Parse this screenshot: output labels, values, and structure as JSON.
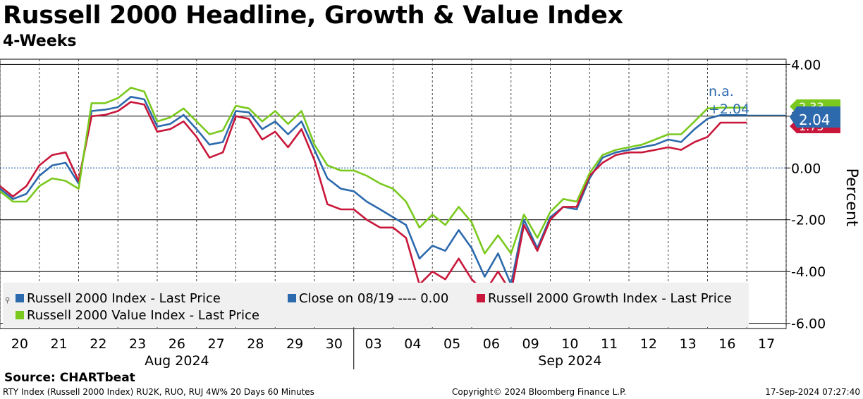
{
  "header": {
    "title": "Russell 2000 Headline, Growth & Value Index",
    "subtitle": "4-Weeks"
  },
  "footer": {
    "source": "Source:  CHARTbeat",
    "left_note": "RTY Index (Russell 2000 Index) RU2K, RUO, RUJ 4W% 20 Days 60 Minutes",
    "copyright": "Copyright© 2024 Bloomberg Finance L.P.",
    "timestamp": "17-Sep-2024 07:27:40"
  },
  "chart_data": {
    "type": "line",
    "title": "Russell 2000 Headline, Growth & Value Index",
    "subtitle": "4-Weeks",
    "ylabel": "Percent",
    "ylim": [
      -6.2,
      4.2
    ],
    "y_ticks": [
      4,
      2,
      0,
      -2,
      -4,
      -6
    ],
    "y_tick_labels": [
      "4.00",
      "2.00",
      "0.00",
      "-2.00",
      "-4.00",
      "-6.00"
    ],
    "x_tick_labels": [
      "20",
      "21",
      "22",
      "23",
      "26",
      "27",
      "28",
      "29",
      "30",
      "03",
      "04",
      "05",
      "06",
      "09",
      "10",
      "11",
      "12",
      "13",
      "16",
      "17"
    ],
    "month_labels": [
      {
        "label": "Aug 2024",
        "from": 0,
        "to": 9
      },
      {
        "label": "Sep 2024",
        "from": 9,
        "to": 20
      }
    ],
    "x_range": [
      0,
      20
    ],
    "zero_line": {
      "value": 0.0,
      "label": "Close on 08/19 ---- 0.00"
    },
    "annotations": [
      "n.a.",
      "+2.04"
    ],
    "last_value_badges": [
      {
        "series": "Russell 2000 Value Index - Last Price",
        "text": "2.33",
        "value": 2.33,
        "color": "#7ac91e"
      },
      {
        "series": "Russell 2000 Growth Index - Last Price",
        "text": "1.75",
        "value": 1.75,
        "color": "#c8173a"
      },
      {
        "series": "Russell 2000 Index - Last Price",
        "text": "2.04",
        "value": 2.04,
        "color": "#2c6aad"
      }
    ],
    "series": [
      {
        "name": "Russell 2000 Index - Last Price",
        "color": "#2c6aad",
        "x": [
          0,
          0.33,
          0.67,
          1,
          1.33,
          1.67,
          2,
          2.33,
          2.67,
          3,
          3.33,
          3.67,
          4,
          4.33,
          4.67,
          5,
          5.33,
          5.67,
          6,
          6.33,
          6.67,
          7,
          7.33,
          7.67,
          8,
          8.33,
          8.67,
          9,
          9.33,
          9.67,
          10,
          10.33,
          10.67,
          11,
          11.33,
          11.67,
          12,
          12.33,
          12.67,
          13,
          13.33,
          13.67,
          14,
          14.33,
          14.67,
          15,
          15.33,
          15.67,
          16,
          16.33,
          16.67,
          17,
          17.33,
          17.67,
          18,
          18.33,
          18.67,
          19
        ],
        "values": [
          -0.8,
          -1.2,
          -1.0,
          -0.3,
          0.1,
          0.2,
          -0.6,
          2.2,
          2.25,
          2.35,
          2.75,
          2.65,
          1.6,
          1.7,
          2.05,
          1.5,
          0.9,
          1.0,
          2.2,
          2.15,
          1.5,
          1.8,
          1.3,
          1.8,
          0.7,
          -0.4,
          -0.8,
          -0.9,
          -1.3,
          -1.6,
          -1.9,
          -2.2,
          -3.5,
          -3.0,
          -3.2,
          -2.4,
          -3.1,
          -4.2,
          -3.3,
          -4.5,
          -2.0,
          -3.1,
          -1.9,
          -1.5,
          -1.6,
          -0.4,
          0.4,
          0.6,
          0.7,
          0.8,
          0.9,
          1.1,
          1.0,
          1.5,
          1.9,
          2.04,
          2.04,
          2.04
        ]
      },
      {
        "name": "Russell 2000 Growth Index - Last Price",
        "color": "#c8173a",
        "x": [
          0,
          0.33,
          0.67,
          1,
          1.33,
          1.67,
          2,
          2.33,
          2.67,
          3,
          3.33,
          3.67,
          4,
          4.33,
          4.67,
          5,
          5.33,
          5.67,
          6,
          6.33,
          6.67,
          7,
          7.33,
          7.67,
          8,
          8.33,
          8.67,
          9,
          9.33,
          9.67,
          10,
          10.33,
          10.67,
          11,
          11.33,
          11.67,
          12,
          12.33,
          12.67,
          13,
          13.33,
          13.67,
          14,
          14.33,
          14.67,
          15,
          15.33,
          15.67,
          16,
          16.33,
          16.67,
          17,
          17.33,
          17.67,
          18,
          18.33,
          18.67,
          19
        ],
        "values": [
          -0.7,
          -1.1,
          -0.7,
          0.1,
          0.5,
          0.6,
          -0.5,
          2.0,
          2.05,
          2.2,
          2.55,
          2.45,
          1.4,
          1.5,
          1.8,
          1.2,
          0.4,
          0.6,
          2.0,
          1.9,
          1.1,
          1.4,
          0.8,
          1.5,
          0.3,
          -1.4,
          -1.6,
          -1.6,
          -2.0,
          -2.3,
          -2.3,
          -2.7,
          -4.5,
          -4.0,
          -4.3,
          -3.5,
          -4.3,
          -4.8,
          -4.0,
          -4.8,
          -2.2,
          -3.2,
          -2.0,
          -1.5,
          -1.5,
          -0.3,
          0.2,
          0.5,
          0.6,
          0.6,
          0.7,
          0.8,
          0.7,
          1.0,
          1.2,
          1.75,
          1.75,
          1.75
        ]
      },
      {
        "name": "Russell 2000 Value Index - Last Price",
        "color": "#7ac91e",
        "x": [
          0,
          0.33,
          0.67,
          1,
          1.33,
          1.67,
          2,
          2.33,
          2.67,
          3,
          3.33,
          3.67,
          4,
          4.33,
          4.67,
          5,
          5.33,
          5.67,
          6,
          6.33,
          6.67,
          7,
          7.33,
          7.67,
          8,
          8.33,
          8.67,
          9,
          9.33,
          9.67,
          10,
          10.33,
          10.67,
          11,
          11.33,
          11.67,
          12,
          12.33,
          12.67,
          13,
          13.33,
          13.67,
          14,
          14.33,
          14.67,
          15,
          15.33,
          15.67,
          16,
          16.33,
          16.67,
          17,
          17.33,
          17.67,
          18,
          18.33,
          18.67,
          19
        ],
        "values": [
          -0.9,
          -1.3,
          -1.3,
          -0.7,
          -0.4,
          -0.5,
          -0.8,
          2.5,
          2.5,
          2.7,
          3.1,
          2.95,
          1.8,
          1.95,
          2.3,
          1.8,
          1.3,
          1.45,
          2.4,
          2.3,
          1.8,
          2.2,
          1.7,
          2.2,
          0.9,
          0.1,
          -0.1,
          -0.1,
          -0.3,
          -0.6,
          -0.8,
          -1.3,
          -2.3,
          -1.8,
          -2.2,
          -1.5,
          -2.1,
          -3.3,
          -2.6,
          -3.3,
          -1.8,
          -2.7,
          -1.7,
          -1.2,
          -1.3,
          -0.2,
          0.5,
          0.7,
          0.8,
          0.9,
          1.1,
          1.3,
          1.3,
          1.8,
          2.3,
          2.33,
          2.33,
          2.33
        ]
      }
    ],
    "legend": {
      "placement": "bottom-left",
      "entries": [
        {
          "label": "Russell 2000 Index - Last Price",
          "color": "#2c6aad"
        },
        {
          "label": "Close on 08/19 ---- 0.00",
          "color": "#2c6aad"
        },
        {
          "label": "Russell 2000 Growth Index - Last Price",
          "color": "#c8173a"
        },
        {
          "label": "Russell 2000 Value Index - Last Price",
          "color": "#7ac91e"
        }
      ]
    }
  }
}
